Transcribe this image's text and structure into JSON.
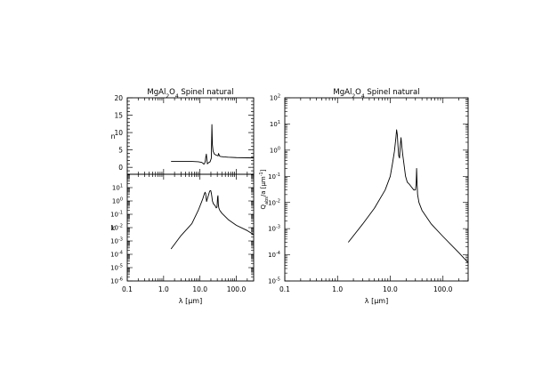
{
  "chart_data": [
    {
      "type": "line",
      "panel": "n",
      "title": "MgAl2O4 Spinel natural",
      "title_parts": [
        "MgAl",
        "2",
        "O",
        "4",
        " Spinel natural"
      ],
      "xlabel": "",
      "ylabel": "n",
      "xscale": "log",
      "yscale": "linear",
      "xlim": [
        0.1,
        300
      ],
      "ylim": [
        -2,
        20
      ],
      "yticks": [
        0,
        5,
        10,
        15,
        20
      ],
      "ytick_labels": [
        "0",
        "5",
        "10",
        "15",
        "20"
      ],
      "series": [
        {
          "x": [
            1.6,
            3.0,
            6.0,
            9.0,
            11.0,
            12.0,
            12.8,
            13.5,
            14.0,
            14.5,
            15.0,
            15.6,
            16.0,
            17.0,
            19.0,
            20.5,
            21.3,
            22.0,
            23.0,
            25.0,
            28.0,
            30.0,
            31.5,
            32.5,
            33.5,
            35.0,
            38.0,
            45.0,
            60.0,
            100.0,
            300.0
          ],
          "y": [
            1.7,
            1.7,
            1.68,
            1.6,
            1.45,
            1.2,
            0.9,
            1.2,
            1.8,
            3.0,
            3.8,
            2.0,
            1.0,
            1.3,
            1.6,
            2.6,
            12.3,
            6.5,
            4.6,
            3.8,
            3.5,
            3.4,
            3.3,
            4.0,
            3.6,
            3.2,
            3.1,
            3.0,
            2.9,
            2.8,
            2.7
          ]
        }
      ]
    },
    {
      "type": "line",
      "panel": "k",
      "title": "",
      "xlabel": "λ [μm]",
      "ylabel": "k",
      "xscale": "log",
      "yscale": "log",
      "xlim": [
        0.1,
        300
      ],
      "ylim": [
        1e-06,
        100
      ],
      "xticks": [
        0.1,
        1.0,
        10.0,
        100.0
      ],
      "xtick_labels": [
        "0.1",
        "1.0",
        "10.0",
        "100.0"
      ],
      "yticks": [
        1e-06,
        1e-05,
        0.0001,
        0.001,
        0.01,
        0.1,
        1,
        10
      ],
      "ytick_labels": [
        [
          "10",
          "-6"
        ],
        [
          "10",
          "-5"
        ],
        [
          "10",
          "-4"
        ],
        [
          "10",
          "-3"
        ],
        [
          "10",
          "-2"
        ],
        [
          "10",
          "-1"
        ],
        [
          "10",
          "0"
        ],
        [
          "10",
          "1"
        ]
      ],
      "series": [
        {
          "x": [
            1.6,
            3.0,
            6.0,
            9.0,
            11.0,
            12.0,
            13.0,
            13.8,
            14.3,
            14.7,
            15.2,
            16.0,
            17.0,
            18.5,
            19.8,
            20.5,
            21.3,
            22.0,
            23.5,
            26.0,
            28.0,
            29.5,
            30.5,
            31.3,
            32.0,
            33.0,
            35.0,
            40.0,
            60.0,
            100.0,
            200.0,
            300.0
          ],
          "y": [
            0.00025,
            0.0025,
            0.02,
            0.2,
            0.8,
            1.5,
            3.0,
            4.5,
            3.8,
            2.0,
            0.9,
            1.5,
            2.5,
            5.5,
            6.0,
            4.0,
            2.0,
            1.0,
            0.6,
            0.45,
            0.3,
            0.35,
            1.8,
            2.5,
            0.6,
            0.3,
            0.2,
            0.12,
            0.04,
            0.015,
            0.006,
            0.003
          ]
        }
      ]
    },
    {
      "type": "line",
      "panel": "qabs",
      "title": "MgAl2O4 Spinel natural",
      "title_parts": [
        "MgAl",
        "2",
        "O",
        "4",
        " Spinel natural"
      ],
      "xlabel": "λ [μm]",
      "ylabel": "Qabs/a [μm-1]",
      "ylabel_parts": [
        "Q",
        "abs",
        "/a [μm",
        "-1",
        "]"
      ],
      "xscale": "log",
      "yscale": "log",
      "xlim": [
        0.1,
        300
      ],
      "ylim": [
        1e-05,
        100
      ],
      "xticks": [
        0.1,
        1.0,
        10.0,
        100.0
      ],
      "xtick_labels": [
        "0.1",
        "1.0",
        "10.0",
        "100.0"
      ],
      "yticks": [
        1e-05,
        0.0001,
        0.001,
        0.01,
        0.1,
        1,
        10,
        100
      ],
      "ytick_labels": [
        [
          "10",
          "-5"
        ],
        [
          "10",
          "-4"
        ],
        [
          "10",
          "-3"
        ],
        [
          "10",
          "-2"
        ],
        [
          "10",
          "-1"
        ],
        [
          "10",
          "0"
        ],
        [
          "10",
          "1"
        ],
        [
          "10",
          "2"
        ]
      ],
      "series": [
        {
          "x": [
            1.6,
            3.0,
            5.0,
            8.0,
            10.0,
            11.0,
            12.0,
            12.8,
            13.2,
            13.6,
            14.0,
            14.5,
            15.0,
            15.5,
            16.0,
            16.5,
            17.2,
            18.0,
            19.5,
            21.0,
            23.0,
            25.0,
            28.0,
            30.0,
            31.0,
            31.6,
            32.2,
            33.0,
            35.0,
            40.0,
            60.0,
            100.0,
            200.0,
            300.0
          ],
          "y": [
            0.0003,
            0.0015,
            0.006,
            0.03,
            0.1,
            0.3,
            0.9,
            3.0,
            6.0,
            4.0,
            1.5,
            0.6,
            0.5,
            1.5,
            3.0,
            1.5,
            0.7,
            0.35,
            0.1,
            0.06,
            0.05,
            0.04,
            0.03,
            0.03,
            0.05,
            0.2,
            0.06,
            0.02,
            0.01,
            0.005,
            0.0015,
            0.0005,
            0.00012,
            5e-05
          ]
        }
      ]
    }
  ]
}
